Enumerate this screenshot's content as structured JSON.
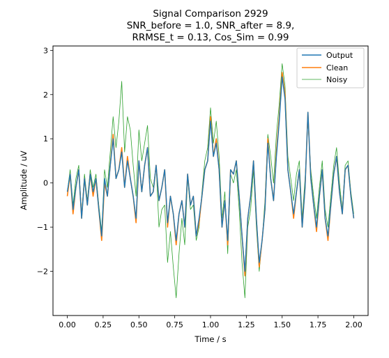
{
  "chart_data": {
    "type": "line",
    "title_lines": [
      "Signal Comparison 2929",
      "SNR_before = 1.0, SNR_after = 8.9,",
      "RRMSE_t = 0.13, Cos_Sim = 0.99"
    ],
    "xlabel": "Time / s",
    "ylabel": "Amplitude / uV",
    "xlim": [
      -0.1,
      2.1
    ],
    "ylim": [
      -3.0,
      3.1
    ],
    "xticks": [
      0.0,
      0.25,
      0.5,
      0.75,
      1.0,
      1.25,
      1.5,
      1.75,
      2.0
    ],
    "xtick_labels": [
      "0.00",
      "0.25",
      "0.50",
      "0.75",
      "1.00",
      "1.25",
      "1.50",
      "1.75",
      "2.00"
    ],
    "yticks": [
      -2,
      -1,
      0,
      1,
      2,
      3
    ],
    "ytick_labels": [
      "−2",
      "−1",
      "0",
      "1",
      "2",
      "3"
    ],
    "grid": false,
    "legend_position": "top-right",
    "x": [
      0.0,
      0.02,
      0.04,
      0.06,
      0.08,
      0.1,
      0.12,
      0.14,
      0.16,
      0.18,
      0.2,
      0.22,
      0.24,
      0.26,
      0.28,
      0.3,
      0.32,
      0.34,
      0.36,
      0.38,
      0.4,
      0.42,
      0.44,
      0.46,
      0.48,
      0.5,
      0.52,
      0.54,
      0.56,
      0.58,
      0.6,
      0.62,
      0.64,
      0.66,
      0.68,
      0.7,
      0.72,
      0.74,
      0.76,
      0.78,
      0.8,
      0.82,
      0.84,
      0.86,
      0.88,
      0.9,
      0.92,
      0.94,
      0.96,
      0.98,
      1.0,
      1.02,
      1.04,
      1.06,
      1.08,
      1.1,
      1.12,
      1.14,
      1.16,
      1.18,
      1.2,
      1.22,
      1.24,
      1.26,
      1.28,
      1.3,
      1.32,
      1.34,
      1.36,
      1.38,
      1.4,
      1.42,
      1.44,
      1.46,
      1.48,
      1.5,
      1.52,
      1.54,
      1.56,
      1.58,
      1.6,
      1.62,
      1.64,
      1.66,
      1.68,
      1.7,
      1.72,
      1.74,
      1.76,
      1.78,
      1.8,
      1.82,
      1.84,
      1.86,
      1.88,
      1.9,
      1.92,
      1.94,
      1.96,
      1.98,
      2.0
    ],
    "series": [
      {
        "name": "Output",
        "color": "#1f77b4",
        "values": [
          -0.2,
          0.2,
          -0.6,
          -0.1,
          0.3,
          -0.8,
          0.1,
          -0.5,
          0.2,
          -0.2,
          0.1,
          -0.6,
          -1.2,
          0.1,
          -0.3,
          0.4,
          1.0,
          0.1,
          0.3,
          0.7,
          -0.1,
          0.5,
          0.1,
          -0.3,
          -0.8,
          0.5,
          -0.2,
          0.4,
          0.8,
          -0.3,
          -0.2,
          0.4,
          -0.4,
          -0.1,
          0.3,
          -0.9,
          -0.3,
          -0.7,
          -1.3,
          -0.7,
          -0.4,
          -1.0,
          0.2,
          -0.5,
          -0.3,
          -1.2,
          -0.8,
          -0.3,
          0.3,
          0.5,
          1.4,
          0.6,
          0.9,
          0.3,
          -1.0,
          -0.4,
          -1.3,
          0.3,
          0.2,
          0.5,
          -0.3,
          -1.2,
          -2.0,
          -0.8,
          -0.3,
          0.5,
          -0.8,
          -1.8,
          -1.3,
          -0.6,
          0.9,
          0.1,
          -0.4,
          0.6,
          1.4,
          2.4,
          1.9,
          0.3,
          -0.2,
          -0.7,
          -0.2,
          0.3,
          -1.0,
          -0.1,
          1.6,
          0.1,
          -0.5,
          -1.0,
          -0.3,
          0.3,
          -0.8,
          -1.2,
          -0.5,
          0.2,
          0.6,
          -0.2,
          -0.7,
          0.3,
          0.4,
          -0.3,
          -0.8
        ],
        "style": "solid"
      },
      {
        "name": "Clean",
        "color": "#ff7f0e",
        "values": [
          -0.3,
          0.2,
          -0.7,
          -0.1,
          0.3,
          -0.8,
          0.1,
          -0.5,
          0.2,
          -0.3,
          0.1,
          -0.6,
          -1.3,
          0.0,
          -0.3,
          0.4,
          1.1,
          0.1,
          0.3,
          0.8,
          -0.1,
          0.6,
          0.1,
          -0.3,
          -0.9,
          0.5,
          -0.2,
          0.4,
          0.8,
          -0.3,
          -0.2,
          0.4,
          -0.4,
          -0.1,
          0.3,
          -1.0,
          -0.3,
          -0.7,
          -1.4,
          -0.7,
          -0.4,
          -1.0,
          0.2,
          -0.5,
          -0.3,
          -1.2,
          -0.9,
          -0.3,
          0.3,
          0.5,
          1.5,
          0.6,
          1.0,
          0.3,
          -1.0,
          -0.4,
          -1.4,
          0.3,
          0.2,
          0.5,
          -0.3,
          -1.2,
          -2.1,
          -0.8,
          -0.3,
          0.5,
          -0.8,
          -1.9,
          -1.3,
          -0.6,
          1.0,
          0.1,
          -0.4,
          0.7,
          1.5,
          2.5,
          2.0,
          0.3,
          -0.2,
          -0.8,
          -0.2,
          0.3,
          -1.0,
          -0.1,
          1.6,
          0.1,
          -0.5,
          -1.1,
          -0.3,
          0.3,
          -0.8,
          -1.3,
          -0.5,
          0.2,
          0.6,
          -0.2,
          -0.7,
          0.3,
          0.4,
          -0.3,
          -0.8
        ],
        "style": "solid"
      },
      {
        "name": "Noisy",
        "color": "#2ca02c",
        "values": [
          -0.2,
          0.3,
          -0.5,
          0.1,
          0.4,
          -0.7,
          0.2,
          -0.4,
          0.3,
          -0.1,
          0.2,
          -0.5,
          -1.1,
          0.3,
          -0.1,
          0.7,
          1.5,
          0.8,
          1.4,
          2.3,
          0.7,
          1.5,
          1.2,
          0.4,
          -0.3,
          1.2,
          0.5,
          0.9,
          1.3,
          0.1,
          -0.1,
          0.4,
          -1.0,
          -0.6,
          -0.5,
          -1.8,
          -1.1,
          -1.9,
          -2.6,
          -1.6,
          -0.8,
          -1.4,
          0.1,
          -0.6,
          -0.5,
          -1.3,
          -1.0,
          -0.2,
          0.5,
          0.8,
          1.7,
          0.9,
          1.4,
          0.6,
          -0.8,
          -0.2,
          -1.6,
          0.2,
          0.0,
          0.3,
          -0.6,
          -1.8,
          -2.6,
          -1.0,
          -0.6,
          0.3,
          -1.0,
          -2.0,
          -1.3,
          -0.4,
          1.1,
          0.6,
          0.0,
          1.1,
          1.8,
          2.7,
          2.2,
          0.6,
          0.1,
          -0.4,
          0.2,
          0.5,
          -0.8,
          0.1,
          1.4,
          0.3,
          -0.3,
          -0.8,
          -0.1,
          0.5,
          -0.6,
          -1.0,
          -0.3,
          0.4,
          0.8,
          0.0,
          -0.6,
          0.4,
          0.5,
          -0.2,
          -0.7
        ],
        "style": "solid"
      }
    ]
  }
}
